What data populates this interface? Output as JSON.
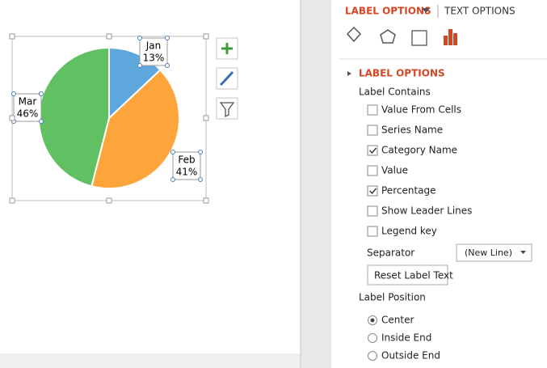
{
  "chart_data": {
    "type": "pie",
    "categories": [
      "Jan",
      "Feb",
      "Mar"
    ],
    "values": [
      13,
      41,
      46
    ],
    "value_labels": [
      "13%",
      "41%",
      "46%"
    ],
    "colors": [
      "#5ea7dc",
      "#fda53a",
      "#60c062"
    ]
  },
  "pane": {
    "tabs": [
      "LABEL OPTIONS",
      "TEXT OPTIONS"
    ],
    "section": "LABEL OPTIONS",
    "group": "Label Contains",
    "checkboxes": [
      {
        "label": "Value From Cells",
        "checked": false
      },
      {
        "label": "Series Name",
        "checked": false
      },
      {
        "label": "Category Name",
        "checked": true
      },
      {
        "label": "Value",
        "checked": false
      },
      {
        "label": "Percentage",
        "checked": true
      },
      {
        "label": "Show Leader Lines",
        "checked": false
      },
      {
        "label": "Legend key",
        "checked": false
      }
    ],
    "separator": {
      "label": "Separator",
      "value": "(New Line)"
    },
    "reset_button": "Reset Label Text",
    "position_group": "Label Position",
    "radios": [
      {
        "label": "Center",
        "selected": true
      },
      {
        "label": "Inside End",
        "selected": false
      },
      {
        "label": "Outside End",
        "selected": false
      }
    ]
  }
}
